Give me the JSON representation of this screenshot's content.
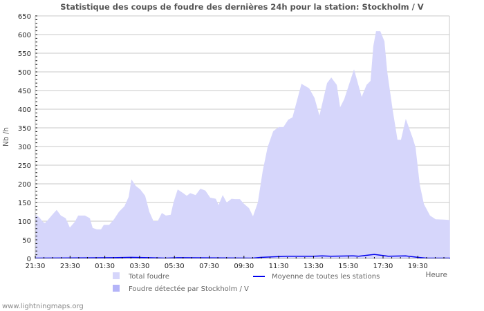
{
  "chart_data": {
    "type": "area",
    "title": "Statistique des coups de foudre des dernières 24h pour la station: Stockholm / V",
    "xlabel": "Heure",
    "ylabel": "Nb /h",
    "ylim": [
      0,
      650
    ],
    "yticks": [
      0,
      50,
      100,
      150,
      200,
      250,
      300,
      350,
      400,
      450,
      500,
      550,
      600,
      650
    ],
    "xtick_labels": [
      "21:30",
      "23:30",
      "01:30",
      "03:30",
      "05:30",
      "07:30",
      "09:30",
      "11:30",
      "13:30",
      "15:30",
      "17:30",
      "19:30"
    ],
    "x_unit": "hours since 21:30",
    "xlim": [
      0,
      23.85
    ],
    "grid": true,
    "legend_position": "bottom",
    "colors": {
      "total": "#d6d6fb",
      "station": "#b4b4f8",
      "average": "#0000ee",
      "grid": "#c8c8c8"
    },
    "series": [
      {
        "name": "Total foudre",
        "kind": "area",
        "points": [
          [
            0,
            118
          ],
          [
            0.24,
            110
          ],
          [
            0.44,
            98
          ],
          [
            0.56,
            95
          ],
          [
            0.76,
            105
          ],
          [
            1.03,
            120
          ],
          [
            1.23,
            130
          ],
          [
            1.47,
            115
          ],
          [
            1.75,
            108
          ],
          [
            1.99,
            83
          ],
          [
            2.27,
            98
          ],
          [
            2.47,
            115
          ],
          [
            2.86,
            115
          ],
          [
            3.14,
            108
          ],
          [
            3.3,
            82
          ],
          [
            3.54,
            78
          ],
          [
            3.78,
            78
          ],
          [
            3.94,
            90
          ],
          [
            4.25,
            90
          ],
          [
            4.53,
            105
          ],
          [
            4.81,
            125
          ],
          [
            5.13,
            140
          ],
          [
            5.37,
            165
          ],
          [
            5.53,
            212
          ],
          [
            5.77,
            195
          ],
          [
            6.04,
            185
          ],
          [
            6.32,
            168
          ],
          [
            6.56,
            125
          ],
          [
            6.8,
            100
          ],
          [
            7.04,
            100
          ],
          [
            7.28,
            122
          ],
          [
            7.51,
            115
          ],
          [
            7.79,
            117
          ],
          [
            7.95,
            150
          ],
          [
            8.19,
            185
          ],
          [
            8.51,
            175
          ],
          [
            8.71,
            168
          ],
          [
            8.91,
            175
          ],
          [
            9.22,
            170
          ],
          [
            9.5,
            187
          ],
          [
            9.78,
            182
          ],
          [
            10.06,
            163
          ],
          [
            10.38,
            160
          ],
          [
            10.54,
            143
          ],
          [
            10.78,
            170
          ],
          [
            11.01,
            150
          ],
          [
            11.29,
            160
          ],
          [
            11.49,
            159
          ],
          [
            11.77,
            159
          ],
          [
            11.97,
            148
          ],
          [
            12.29,
            135
          ],
          [
            12.52,
            113
          ],
          [
            12.8,
            150
          ],
          [
            13.08,
            235
          ],
          [
            13.36,
            298
          ],
          [
            13.68,
            341
          ],
          [
            14.0,
            352
          ],
          [
            14.27,
            352
          ],
          [
            14.55,
            372
          ],
          [
            14.79,
            378
          ],
          [
            15.31,
            468
          ],
          [
            15.75,
            456
          ],
          [
            16.06,
            430
          ],
          [
            16.34,
            383
          ],
          [
            16.78,
            470
          ],
          [
            17.02,
            485
          ],
          [
            17.34,
            465
          ],
          [
            17.53,
            405
          ],
          [
            17.77,
            427
          ],
          [
            18.33,
            507
          ],
          [
            18.77,
            433
          ],
          [
            19.05,
            465
          ],
          [
            19.28,
            476
          ],
          [
            19.44,
            569
          ],
          [
            19.6,
            609
          ],
          [
            19.84,
            609
          ],
          [
            20.08,
            582
          ],
          [
            20.24,
            501
          ],
          [
            20.56,
            396
          ],
          [
            20.83,
            318
          ],
          [
            21.03,
            318
          ],
          [
            21.31,
            374
          ],
          [
            21.71,
            322
          ],
          [
            21.87,
            298
          ],
          [
            22.11,
            198
          ],
          [
            22.35,
            146
          ],
          [
            22.7,
            115
          ],
          [
            23.02,
            105
          ],
          [
            23.5,
            104
          ],
          [
            23.85,
            103
          ]
        ]
      },
      {
        "name": "Foudre détectée par Stockholm / V",
        "kind": "area",
        "points": [
          [
            0,
            0
          ],
          [
            23.85,
            0
          ]
        ]
      },
      {
        "name": "Moyenne de toutes les stations",
        "kind": "line",
        "points": [
          [
            0,
            1
          ],
          [
            4.5,
            2
          ],
          [
            5.5,
            3
          ],
          [
            6.5,
            2
          ],
          [
            7.5,
            1
          ],
          [
            8.2,
            2
          ],
          [
            12.5,
            1
          ],
          [
            13,
            3
          ],
          [
            14,
            5
          ],
          [
            14.5,
            6
          ],
          [
            16,
            6
          ],
          [
            16.5,
            7
          ],
          [
            17,
            6
          ],
          [
            18.3,
            7
          ],
          [
            18.6,
            6
          ],
          [
            19.5,
            11
          ],
          [
            20.3,
            6
          ],
          [
            21.3,
            7
          ],
          [
            22,
            3
          ],
          [
            22.5,
            1
          ],
          [
            23.85,
            1
          ]
        ]
      }
    ]
  },
  "footer": "www.lightningmaps.org"
}
